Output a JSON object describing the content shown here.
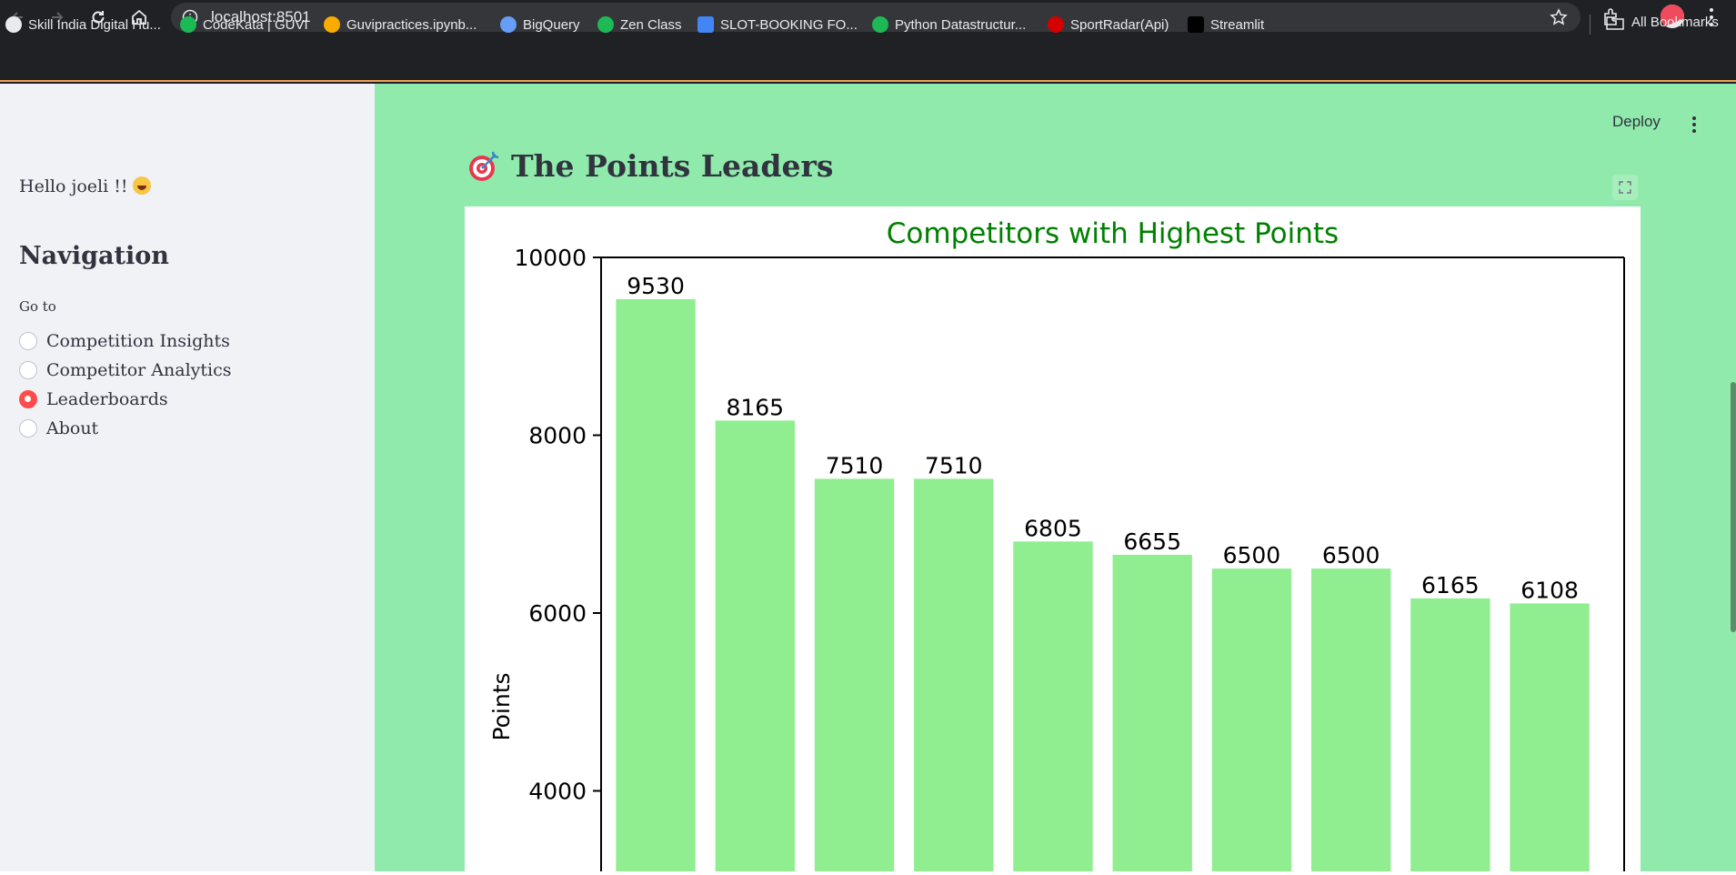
{
  "browser": {
    "url": "localhost:8501",
    "bookmarks": [
      {
        "label": "Skill India Digital Hu...",
        "icon": "skill-india-icon",
        "color": "#e8eaed"
      },
      {
        "label": "CodeKata | GUVI",
        "icon": "guvi-icon",
        "color": "#1db954"
      },
      {
        "label": "Guvipractices.ipynb...",
        "icon": "colab-icon",
        "color": "#f9ab00"
      },
      {
        "label": "BigQuery",
        "icon": "bigquery-icon",
        "color": "#669df6"
      },
      {
        "label": "Zen Class",
        "icon": "guvi-icon",
        "color": "#1db954"
      },
      {
        "label": "SLOT-BOOKING FO...",
        "icon": "google-docs-icon",
        "color": "#4285f4"
      },
      {
        "label": "Python Datastructur...",
        "icon": "python-datastructures-icon",
        "color": "#1db954"
      },
      {
        "label": "SportRadar(Api)",
        "icon": "sportradar-icon",
        "color": "#d50000"
      },
      {
        "label": "Streamlit",
        "icon": "medium-icon",
        "color": "#000000"
      }
    ],
    "all_bookmarks_label": "All Bookmarks"
  },
  "sidebar": {
    "greeting": "Hello joeli !!",
    "nav_title": "Navigation",
    "goto_label": "Go to",
    "options": [
      {
        "label": "Competition Insights",
        "selected": false
      },
      {
        "label": "Competitor Analytics",
        "selected": false
      },
      {
        "label": "Leaderboards",
        "selected": true
      },
      {
        "label": "About",
        "selected": false
      }
    ],
    "accent_color": "#ff4b4b"
  },
  "header": {
    "deploy_label": "Deploy"
  },
  "main": {
    "title": "The Points Leaders",
    "background_color": "#90eaac"
  },
  "chart_data": {
    "type": "bar",
    "title": "Competitors with Highest Points",
    "title_color": "#008000",
    "ylabel": "Points",
    "xlabel": "",
    "bar_color": "#90ee90",
    "values": [
      9530,
      8165,
      7510,
      7510,
      6805,
      6655,
      6500,
      6500,
      6165,
      6108
    ],
    "data_labels": [
      "9530",
      "8165",
      "7510",
      "7510",
      "6805",
      "6655",
      "6500",
      "6500",
      "6165",
      "6108"
    ],
    "yticks": [
      "4000",
      "6000",
      "8000",
      "10000"
    ],
    "ytick_values": [
      4000,
      6000,
      8000,
      10000
    ],
    "ylim_top": 10000,
    "grid": false
  }
}
